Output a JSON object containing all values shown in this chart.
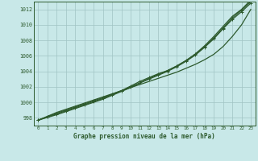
{
  "title": "Graphe pression niveau de la mer (hPa)",
  "background_color": "#c8e8e8",
  "plot_bg_color": "#c8e8e8",
  "grid_color": "#a0c4c4",
  "line_color": "#2d5a2d",
  "xlim": [
    -0.5,
    23.5
  ],
  "ylim": [
    997,
    1013
  ],
  "xticks": [
    0,
    1,
    2,
    3,
    4,
    5,
    6,
    7,
    8,
    9,
    10,
    11,
    12,
    13,
    14,
    15,
    16,
    17,
    18,
    19,
    20,
    21,
    22,
    23
  ],
  "yticks": [
    998,
    1000,
    1002,
    1004,
    1006,
    1008,
    1010,
    1012
  ],
  "series": [
    {
      "y": [
        997.7,
        998.2,
        998.7,
        999.1,
        999.5,
        999.9,
        1000.3,
        1000.7,
        1001.1,
        1001.5,
        1001.9,
        1002.3,
        1002.7,
        1003.1,
        1003.5,
        1003.9,
        1004.4,
        1004.9,
        1005.5,
        1006.2,
        1007.2,
        1008.5,
        1010.0,
        1012.0
      ],
      "marker": false,
      "lw": 0.9
    },
    {
      "y": [
        997.7,
        998.15,
        998.6,
        999.0,
        999.4,
        999.8,
        1000.2,
        1000.6,
        1001.05,
        1001.5,
        1002.0,
        1002.5,
        1003.0,
        1003.5,
        1004.0,
        1004.6,
        1005.3,
        1006.1,
        1007.1,
        1008.2,
        1009.5,
        1010.7,
        1011.7,
        1012.8
      ],
      "marker": true,
      "lw": 0.9
    },
    {
      "y": [
        997.7,
        998.1,
        998.5,
        998.9,
        999.3,
        999.7,
        1000.1,
        1000.5,
        1001.0,
        1001.5,
        1002.1,
        1002.7,
        1003.2,
        1003.7,
        1004.1,
        1004.7,
        1005.4,
        1006.2,
        1007.2,
        1008.3,
        1009.6,
        1010.9,
        1011.9,
        1013.0
      ],
      "marker": true,
      "lw": 0.9
    },
    {
      "y": [
        997.7,
        998.05,
        998.4,
        998.8,
        999.2,
        999.6,
        1000.0,
        1000.4,
        1000.9,
        1001.4,
        1001.9,
        1002.5,
        1003.1,
        1003.6,
        1004.1,
        1004.7,
        1005.4,
        1006.25,
        1007.3,
        1008.5,
        1009.8,
        1011.1,
        1012.0,
        1013.2
      ],
      "marker": false,
      "lw": 0.9
    }
  ]
}
